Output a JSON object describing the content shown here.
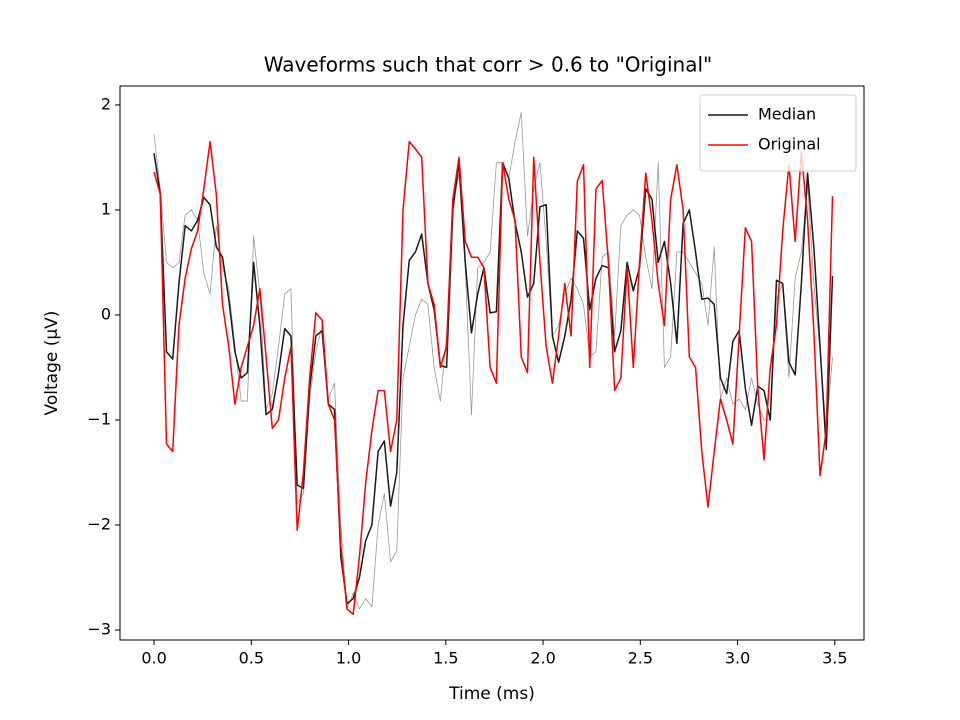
{
  "chart_data": {
    "type": "line",
    "title": "Waveforms such that corr > 0.6 to \"Original\"",
    "x_label": "Time (ms)",
    "y_label": "Voltage (μV)",
    "x": [
      0,
      0.032,
      0.064,
      0.096,
      0.128,
      0.16,
      0.192,
      0.224,
      0.256,
      0.288,
      0.32,
      0.352,
      0.384,
      0.416,
      0.448,
      0.48,
      0.512,
      0.544,
      0.576,
      0.608,
      0.64,
      0.672,
      0.704,
      0.736,
      0.768,
      0.8,
      0.832,
      0.864,
      0.896,
      0.928,
      0.96,
      0.992,
      1.024,
      1.056,
      1.088,
      1.12,
      1.152,
      1.184,
      1.216,
      1.248,
      1.28,
      1.312,
      1.344,
      1.376,
      1.408,
      1.44,
      1.472,
      1.504,
      1.536,
      1.568,
      1.6,
      1.632,
      1.664,
      1.696,
      1.728,
      1.76,
      1.792,
      1.824,
      1.856,
      1.888,
      1.92,
      1.952,
      1.984,
      2.016,
      2.048,
      2.08,
      2.112,
      2.144,
      2.176,
      2.208,
      2.24,
      2.272,
      2.304,
      2.336,
      2.368,
      2.4,
      2.432,
      2.464,
      2.496,
      2.528,
      2.56,
      2.592,
      2.624,
      2.656,
      2.688,
      2.72,
      2.752,
      2.784,
      2.816,
      2.848,
      2.88,
      2.912,
      2.944,
      2.976,
      3.008,
      3.04,
      3.072,
      3.104,
      3.136,
      3.168,
      3.2,
      3.232,
      3.264,
      3.296,
      3.328,
      3.36,
      3.392,
      3.424,
      3.456,
      3.488
    ],
    "series": [
      {
        "color": "#999999",
        "values": [
          1.72,
          1.2,
          0.5,
          0.45,
          0.5,
          0.95,
          1.0,
          0.9,
          0.4,
          0.2,
          0.85,
          0.45,
          0.25,
          -0.3,
          -0.82,
          -0.82,
          0.75,
          0.2,
          -0.9,
          -0.75,
          -0.3,
          0.2,
          0.25,
          -1.8,
          -1.7,
          -0.8,
          -0.35,
          -0.1,
          -0.8,
          -0.65,
          -2.0,
          -2.8,
          -2.65,
          -2.8,
          -2.7,
          -2.78,
          -2.0,
          -1.7,
          -2.35,
          -2.25,
          -0.6,
          -0.3,
          0.0,
          0.15,
          0.1,
          -0.5,
          -0.82,
          -0.2,
          1.05,
          1.35,
          0.45,
          -0.95,
          0.45,
          0.5,
          0.6,
          1.45,
          1.45,
          1.3,
          1.65,
          1.93,
          0.75,
          1.2,
          1.45,
          0.7,
          -0.2,
          -0.1,
          0.2,
          0.35,
          0.25,
          0.1,
          -0.4,
          -0.35,
          0.55,
          0.6,
          -0.2,
          0.85,
          0.95,
          1.0,
          0.95,
          0.55,
          0.25,
          1.45,
          -0.5,
          -0.4,
          0.6,
          0.6,
          0.5,
          0.4,
          0.3,
          -0.1,
          0.65,
          -0.8,
          -0.6,
          -0.85,
          -0.8,
          -0.9,
          -0.6,
          -0.85,
          -1.0,
          -1.0,
          0.15,
          0.3,
          -0.6,
          0.35,
          0.6,
          1.25,
          0.3,
          -0.35,
          -1.1,
          -0.4
        ]
      },
      {
        "name": "Median",
        "color": "#1a1a1a",
        "values": [
          1.54,
          1.15,
          -0.35,
          -0.42,
          0.3,
          0.85,
          0.8,
          0.9,
          1.12,
          1.05,
          0.65,
          0.55,
          0.15,
          -0.35,
          -0.6,
          -0.55,
          0.5,
          -0.1,
          -0.95,
          -0.9,
          -0.55,
          -0.13,
          -0.2,
          -1.62,
          -1.65,
          -0.7,
          -0.2,
          -0.15,
          -0.85,
          -0.9,
          -2.3,
          -2.75,
          -2.7,
          -2.5,
          -2.15,
          -2.0,
          -1.3,
          -1.2,
          -1.82,
          -1.5,
          -0.1,
          0.52,
          0.6,
          0.77,
          0.3,
          0.05,
          -0.48,
          -0.5,
          1.0,
          1.45,
          0.5,
          -0.17,
          0.2,
          0.45,
          0.02,
          0.03,
          1.45,
          1.3,
          0.88,
          0.6,
          0.17,
          0.3,
          1.03,
          1.05,
          -0.2,
          -0.45,
          -0.2,
          0.15,
          0.8,
          0.73,
          0.05,
          0.35,
          0.47,
          0.45,
          -0.35,
          -0.15,
          0.5,
          0.23,
          0.45,
          1.2,
          1.1,
          0.5,
          0.7,
          0.3,
          -0.27,
          0.87,
          1.0,
          0.6,
          0.15,
          0.16,
          0.1,
          -0.6,
          -0.75,
          -0.25,
          -0.15,
          -0.7,
          -1.05,
          -0.68,
          -0.72,
          -1.0,
          0.33,
          0.3,
          -0.45,
          -0.57,
          0.3,
          1.35,
          0.65,
          -0.3,
          -1.28,
          0.37
        ]
      },
      {
        "name": "Original",
        "color": "#ff0000",
        "values": [
          1.36,
          1.15,
          -1.23,
          -1.3,
          -0.1,
          0.35,
          0.63,
          0.8,
          1.2,
          1.65,
          1.15,
          0.1,
          -0.3,
          -0.85,
          -0.5,
          -0.3,
          -0.1,
          0.25,
          -0.4,
          -1.08,
          -1.0,
          -0.6,
          -0.3,
          -2.05,
          -1.5,
          -0.6,
          0.02,
          -0.05,
          -0.85,
          -1.0,
          -2.2,
          -2.8,
          -2.85,
          -2.3,
          -1.6,
          -1.1,
          -0.72,
          -0.72,
          -1.3,
          -1.0,
          1.0,
          1.65,
          1.58,
          1.5,
          0.3,
          0.1,
          -0.5,
          -0.3,
          1.1,
          1.5,
          0.7,
          0.55,
          0.55,
          0.45,
          -0.5,
          -0.65,
          1.45,
          1.1,
          0.9,
          -0.4,
          -0.55,
          1.5,
          0.5,
          -0.3,
          -0.65,
          -0.2,
          0.3,
          -0.2,
          1.27,
          1.43,
          -0.5,
          1.2,
          1.28,
          0.5,
          -0.72,
          -0.6,
          0.45,
          -0.5,
          0.5,
          1.35,
          0.9,
          0.3,
          -0.1,
          1.1,
          1.43,
          1.0,
          -0.4,
          -0.5,
          -1.3,
          -1.83,
          -1.3,
          -0.8,
          -1.0,
          -1.23,
          -0.2,
          0.83,
          0.7,
          -0.7,
          -1.38,
          -0.5,
          -0.1,
          0.8,
          1.43,
          0.7,
          1.55,
          0.9,
          -0.15,
          -1.53,
          -1.1,
          1.13
        ]
      }
    ],
    "xlim": [
      -0.175,
      3.65
    ],
    "ylim": [
      -3.095,
      2.18
    ],
    "xticks": [
      {
        "value": 0,
        "label": "0.0"
      },
      0.5,
      {
        "value": 1,
        "label": "1.0"
      },
      1.5,
      {
        "value": 2,
        "label": "2.0"
      },
      2.5,
      {
        "value": 3,
        "label": "3.0"
      },
      3.5
    ],
    "yticks": [
      {
        "value": -3,
        "label": "−3"
      },
      {
        "value": -2,
        "label": "−2"
      },
      {
        "value": -1,
        "label": "−1"
      },
      0,
      1,
      2
    ],
    "legend": "upper right",
    "grid": false
  }
}
